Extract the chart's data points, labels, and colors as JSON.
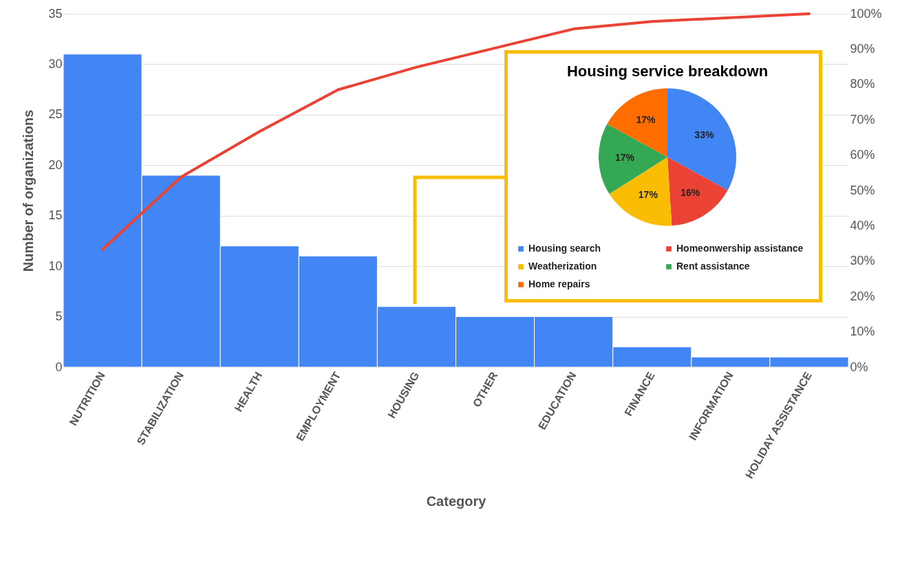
{
  "chart_data": [
    {
      "type": "bar",
      "xlabel": "Category",
      "ylabel": "Number of organizations",
      "categories": [
        "NUTRITION",
        "STABILIZATION",
        "HEALTH",
        "EMPLOYMENT",
        "HOUSING",
        "OTHER",
        "EDUCATION",
        "FINANCE",
        "INFORMATION",
        "HOLIDAY ASSISTANCE"
      ],
      "series": [
        {
          "type": "bar",
          "color": "#4285f4",
          "values": [
            31,
            19,
            12,
            11,
            6,
            5,
            5,
            2,
            1,
            1
          ]
        },
        {
          "type": "line",
          "axis": "y2",
          "color": "#ea4335",
          "values": [
            33.3,
            53.8,
            66.7,
            78.5,
            84.9,
            90.3,
            95.7,
            97.8,
            98.9,
            100
          ]
        }
      ],
      "ylim": [
        0,
        35
      ],
      "yticks": [
        0,
        5,
        10,
        15,
        20,
        25,
        30,
        35
      ],
      "y2lim": [
        0,
        100
      ],
      "y2ticks": [
        {
          "value": 0,
          "label": "0%"
        },
        {
          "value": 10,
          "label": "10%"
        },
        {
          "value": 20,
          "label": "20%"
        },
        {
          "value": 30,
          "label": "30%"
        },
        {
          "value": 40,
          "label": "40%"
        },
        {
          "value": 50,
          "label": "50%"
        },
        {
          "value": 60,
          "label": "60%"
        },
        {
          "value": 70,
          "label": "70%"
        },
        {
          "value": 80,
          "label": "80%"
        },
        {
          "value": 90,
          "label": "90%"
        },
        {
          "value": 100,
          "label": "100%"
        }
      ],
      "grid": "y",
      "marker": "none"
    },
    {
      "type": "pie",
      "title": "Housing service breakdown",
      "categories": [
        "Housing search",
        "Homeonwership assistance",
        "Weatherization",
        "Rent assistance",
        "Home repairs"
      ],
      "values": [
        33,
        16,
        17,
        17,
        17
      ],
      "colors": [
        "#4285f4",
        "#ea4335",
        "#fbbc04",
        "#34a853",
        "#ff6d01"
      ],
      "value_labels": [
        "33%",
        "16%",
        "17%",
        "17%",
        "17%"
      ],
      "legend": "bottom"
    }
  ]
}
